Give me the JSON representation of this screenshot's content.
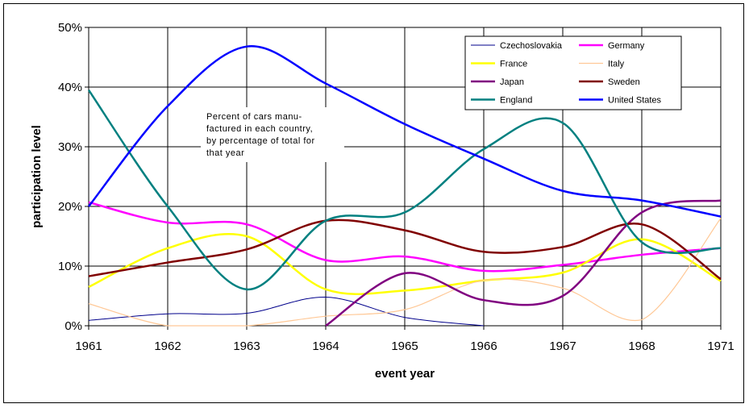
{
  "chart_data": {
    "type": "line",
    "title": "",
    "xlabel": "event year",
    "ylabel": "participation level",
    "x_ticks": [
      "1961",
      "1962",
      "1963",
      "1964",
      "1965",
      "1966",
      "1967",
      "1968",
      "1971"
    ],
    "y_ticks": [
      "0%",
      "10%",
      "20%",
      "30%",
      "40%",
      "50%"
    ],
    "ylim": [
      0,
      50
    ],
    "grid": true,
    "legend_position": "top-right",
    "annotation": [
      "Percent of cars manu-",
      "factured in each country,",
      "by percentage of total for",
      "that year"
    ],
    "series": [
      {
        "name": "Czechoslovakia",
        "color": "#00008B",
        "width": 1,
        "values": [
          0.9,
          2.0,
          2.1,
          4.8,
          1.4,
          0.0,
          null,
          null,
          null
        ]
      },
      {
        "name": "Germany",
        "color": "#FF00FF",
        "width": 2.5,
        "values": [
          20.7,
          17.3,
          17.0,
          11.0,
          11.6,
          9.2,
          10.2,
          11.9,
          13.0
        ]
      },
      {
        "name": "France",
        "color": "#FFFF00",
        "width": 2.5,
        "values": [
          6.5,
          13.0,
          15.0,
          6.1,
          5.9,
          7.6,
          8.9,
          14.5,
          7.5
        ]
      },
      {
        "name": "Italy",
        "color": "#FFC896",
        "width": 1.2,
        "values": [
          3.7,
          0.0,
          0.0,
          1.6,
          2.7,
          7.6,
          6.3,
          1.0,
          18.0
        ]
      },
      {
        "name": "Japan",
        "color": "#800080",
        "width": 2.5,
        "values": [
          null,
          null,
          null,
          0.0,
          8.8,
          4.3,
          5.0,
          19.0,
          21.0
        ]
      },
      {
        "name": "Sweden",
        "color": "#800000",
        "width": 2.5,
        "values": [
          8.3,
          10.6,
          12.8,
          17.6,
          16.0,
          12.4,
          13.2,
          17.0,
          7.8
        ]
      },
      {
        "name": "England",
        "color": "#008080",
        "width": 2.5,
        "values": [
          39.5,
          20.0,
          6.1,
          17.6,
          19.0,
          29.6,
          34.0,
          14.0,
          13.0
        ]
      },
      {
        "name": "United States",
        "color": "#0000FF",
        "width": 2.5,
        "values": [
          20.0,
          36.8,
          46.8,
          40.6,
          33.8,
          28.0,
          22.6,
          21.0,
          18.3
        ]
      }
    ]
  }
}
